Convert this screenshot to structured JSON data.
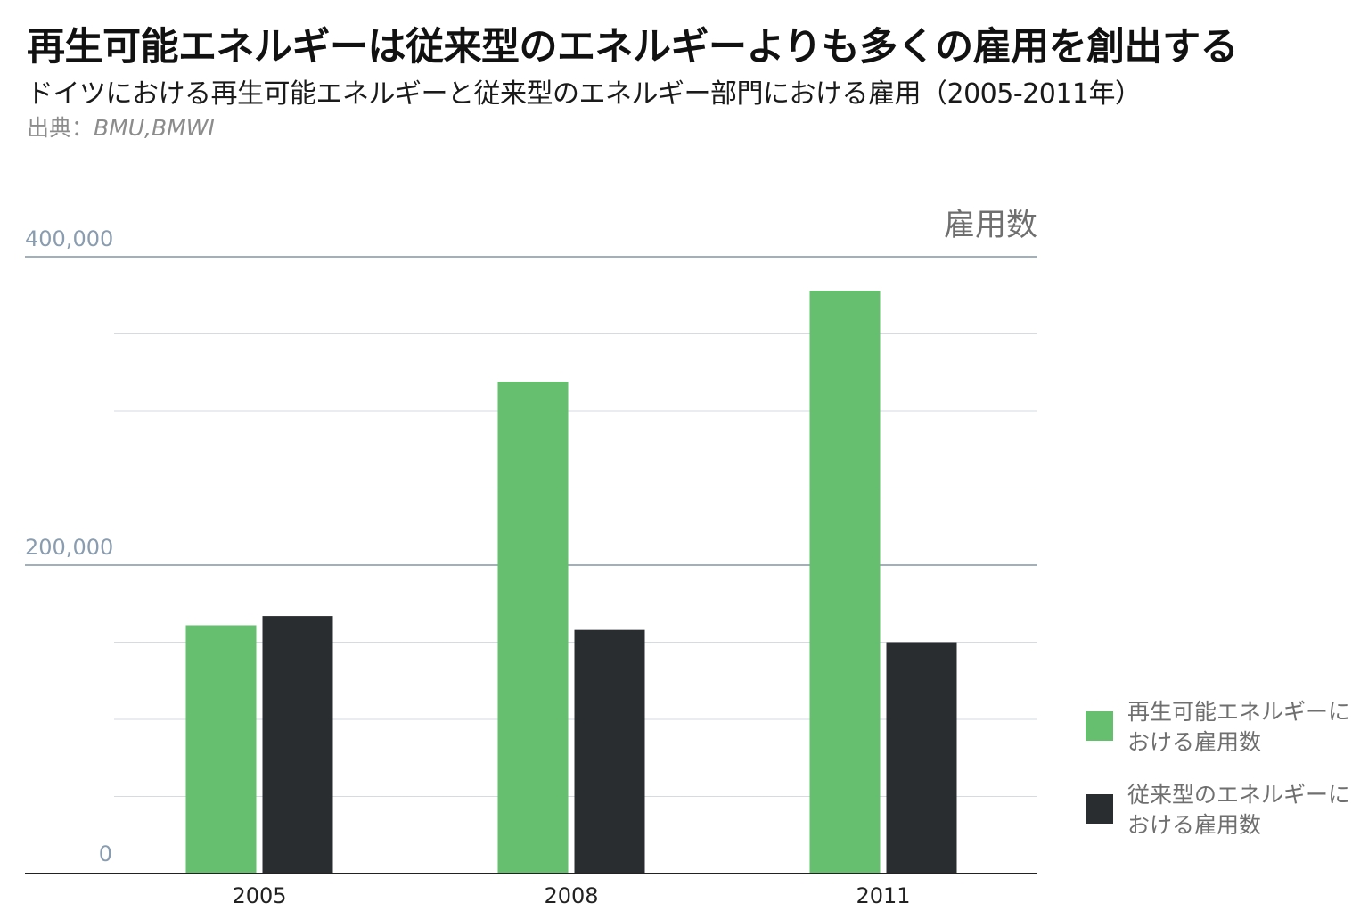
{
  "header": {
    "title": "再生可能エネルギーは従来型のエネルギーよりも多くの雇用を創出する",
    "subtitle": "ドイツにおける再生可能エネルギーと従来型のエネルギー部門における雇用（2005-2011年）",
    "source_label": "出典：",
    "source_names": "BMU,BMWI"
  },
  "colors": {
    "renewable": "#66bf6e",
    "conventional": "#2a2d30",
    "major_grid": "#8496a6",
    "minor_grid": "#d6dbe0",
    "tick_label": "#8a9db0",
    "axis": "#222222"
  },
  "chart_data": {
    "type": "bar",
    "ylabel": "雇用数",
    "categories": [
      "2005",
      "2008",
      "2011"
    ],
    "ylim": [
      0,
      400000
    ],
    "y_ticks_labeled": [
      "0",
      "200,000",
      "400,000"
    ],
    "grid": true,
    "legend_position": "right",
    "series": [
      {
        "name": "再生可能エネルギーにおける雇用数",
        "color": "#66bf6e",
        "values": [
          161000,
          319000,
          378000
        ]
      },
      {
        "name": "従来型のエネルギーにおける雇用数",
        "color": "#2a2d30",
        "values": [
          167000,
          158000,
          150000
        ]
      }
    ]
  },
  "legend": [
    {
      "label": "再生可能エネルギーにおける雇用数",
      "color": "#66bf6e"
    },
    {
      "label": "従来型のエネルギーにおける雇用数",
      "color": "#2a2d30"
    }
  ]
}
